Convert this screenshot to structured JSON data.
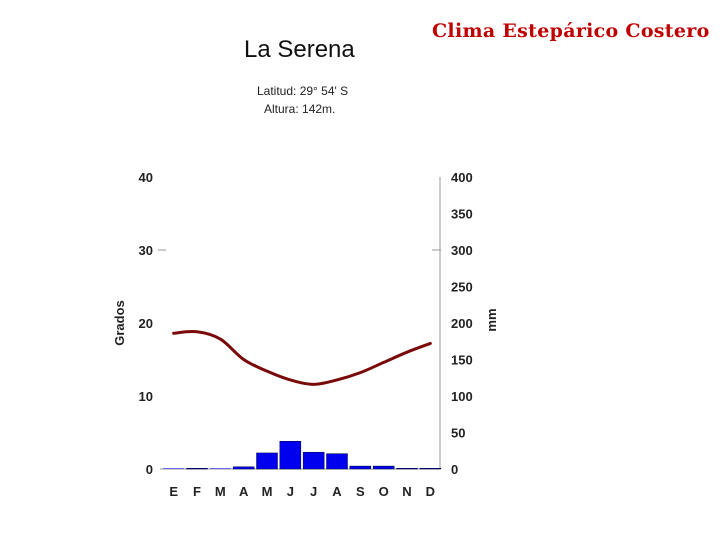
{
  "header": {
    "slide_title": "Clima Estepárico Costero",
    "city": "La Serena",
    "latitude": "Latitud: 29° 54' S",
    "altitude": "Altura: 142m."
  },
  "colors": {
    "title": "#c00000",
    "temperature_line": "#7a0a0a",
    "precipitation_bar": "#0000ee",
    "axis": "#999999"
  },
  "chart_data": {
    "type": "bar",
    "categories": [
      "E",
      "F",
      "M",
      "A",
      "M",
      "J",
      "J",
      "A",
      "S",
      "O",
      "N",
      "D"
    ],
    "series": [
      {
        "type": "bar",
        "axis": "right",
        "values": [
          0,
          1,
          0,
          3,
          22,
          38,
          23,
          21,
          4,
          4,
          1,
          1
        ]
      },
      {
        "type": "line",
        "axis": "left",
        "values": [
          18.6,
          18.8,
          17.8,
          15.0,
          13.4,
          12.2,
          11.6,
          12.2,
          13.2,
          14.6,
          16.0,
          17.2
        ]
      }
    ],
    "ylabel_left": "Grados",
    "ylabel_right": "mm",
    "ylim_left": [
      0,
      40
    ],
    "ylim_right": [
      0,
      400
    ],
    "yticks_left": [
      0,
      10,
      20,
      30,
      40
    ],
    "yticks_right": [
      0,
      50,
      100,
      150,
      200,
      250,
      300,
      350,
      400
    ]
  }
}
